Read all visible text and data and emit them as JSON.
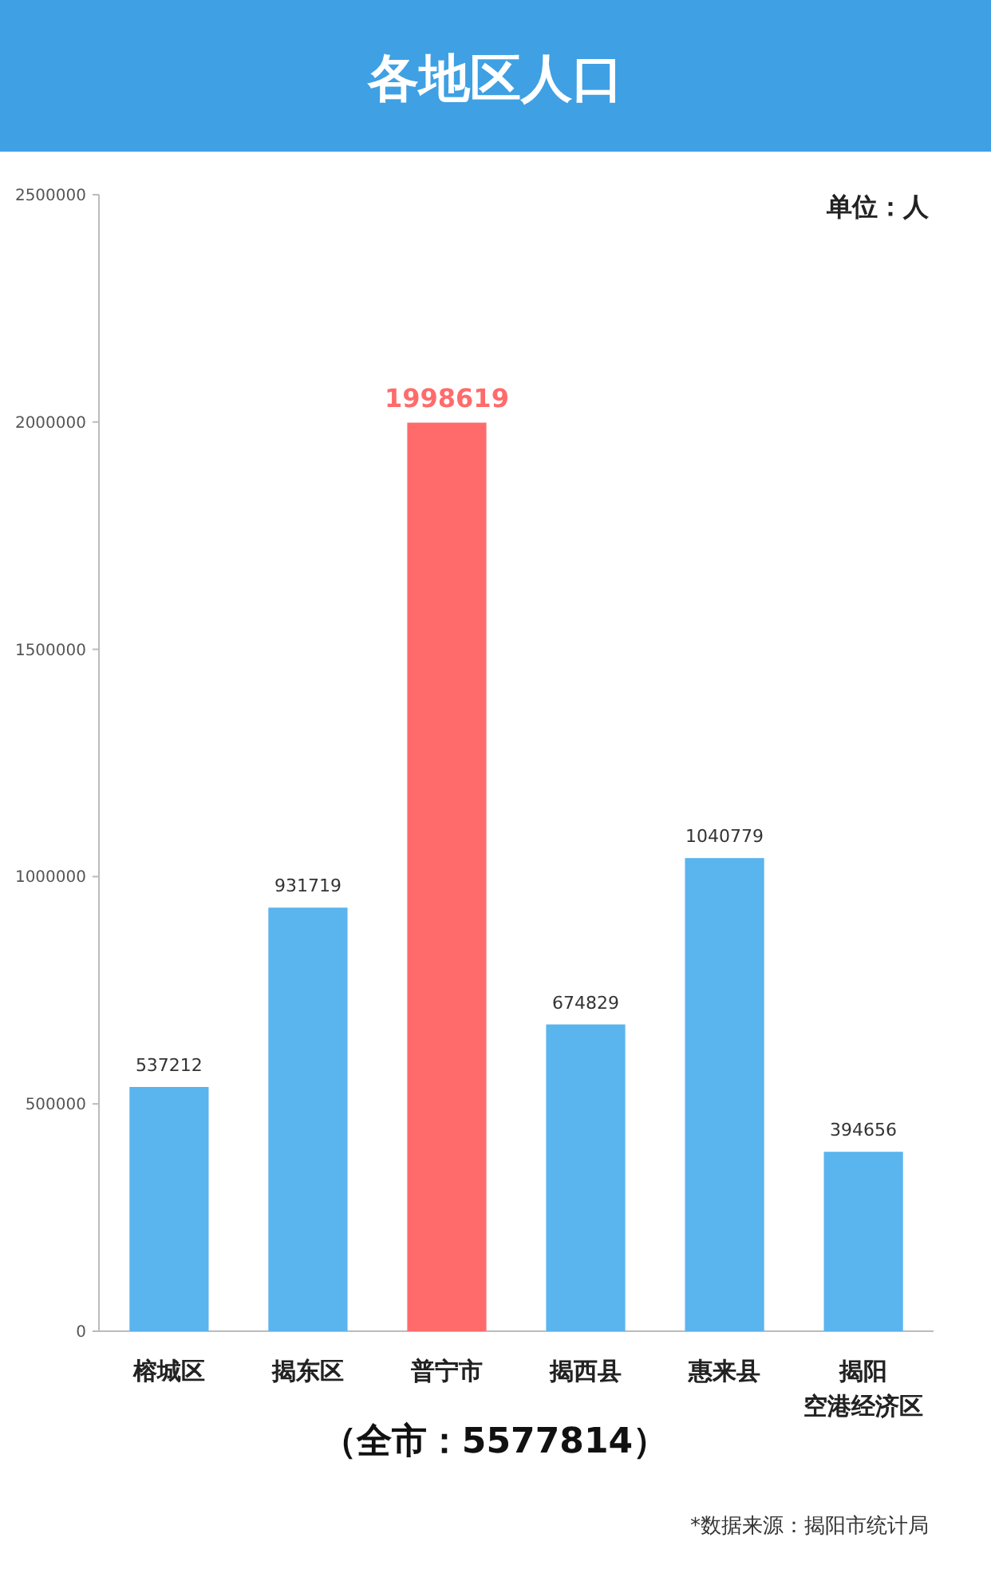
{
  "chart_data": {
    "type": "bar",
    "title": "各地区人口",
    "categories": [
      "榕城区",
      "揭东区",
      "普宁市",
      "揭西县",
      "惠来县",
      "揭阳空港经济区"
    ],
    "values": [
      537212,
      931719,
      1998619,
      674829,
      1040779,
      394656
    ],
    "colors": [
      "#5ab4ee",
      "#5ab4ee",
      "#ff6b6b",
      "#5ab4ee",
      "#5ab4ee",
      "#5ab4ee"
    ],
    "ylim": [
      0,
      2500000
    ],
    "yticks": [
      0,
      500000,
      1000000,
      1500000,
      2000000,
      2500000
    ],
    "grid": false,
    "data_labels": true,
    "annotations": [
      "单位：人",
      "（全市：5577814）",
      "*数据来源：揭阳市统计局"
    ]
  }
}
